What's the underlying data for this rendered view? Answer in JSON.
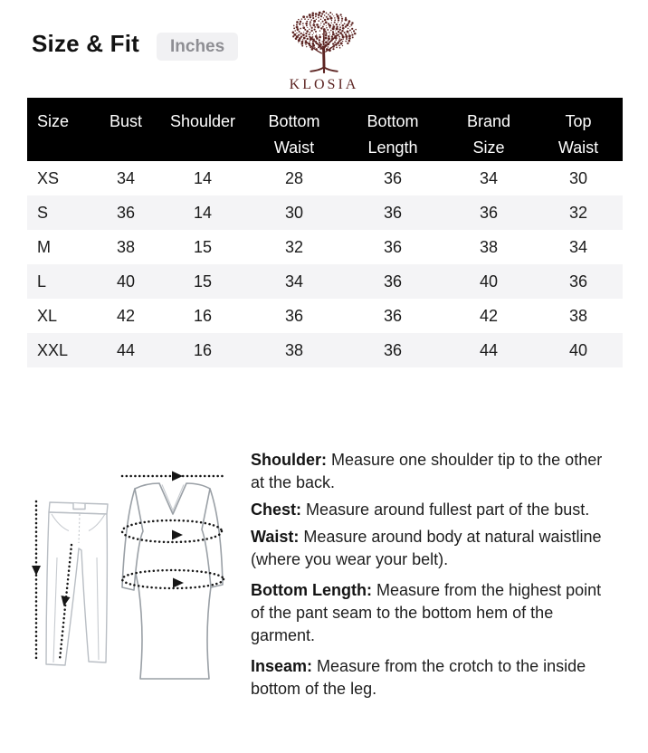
{
  "header": {
    "title": "Size & Fit",
    "unit_badge": "Inches"
  },
  "brand": {
    "name": "KLOSIA",
    "logo_icon": "tree-icon",
    "logo_color": "#5d2523"
  },
  "size_table": {
    "columns": [
      "Size",
      "Bust",
      "Shoulder",
      "Bottom\nWaist",
      "Bottom\nLength",
      "Brand\nSize",
      "Top\nWaist"
    ],
    "rows": [
      [
        "XS",
        "34",
        "14",
        "28",
        "36",
        "34",
        "30"
      ],
      [
        "S",
        "36",
        "14",
        "30",
        "36",
        "36",
        "32"
      ],
      [
        "M",
        "38",
        "15",
        "32",
        "36",
        "38",
        "34"
      ],
      [
        "L",
        "40",
        "15",
        "34",
        "36",
        "40",
        "36"
      ],
      [
        "XL",
        "42",
        "16",
        "36",
        "36",
        "42",
        "38"
      ],
      [
        "XXL",
        "44",
        "16",
        "38",
        "36",
        "44",
        "40"
      ]
    ],
    "header_bg": "#000000",
    "stripe_color": "#f4f4f6"
  },
  "measure_guide": {
    "items": [
      {
        "label": "Shoulder:",
        "text": "Measure one shoulder tip to the other at the back."
      },
      {
        "label": "Chest:",
        "text": "Measure around fullest  part of the bust."
      },
      {
        "label": "Waist:",
        "text": "Measure around body at natural waistline (where you wear your belt)."
      },
      {
        "label": "Bottom Length:",
        "text": "Measure from the highest point of the pant seam to the bottom hem of the garment."
      },
      {
        "label": "Inseam:",
        "text": "Measure from the crotch to the inside bottom of the leg."
      }
    ]
  },
  "diagram": {
    "items": [
      "pants-outline",
      "dress-outline",
      "outseam-arrow",
      "inseam-arrow",
      "shoulder-arrow",
      "bust-ellipse-arrow",
      "hip-ellipse-arrow"
    ]
  }
}
